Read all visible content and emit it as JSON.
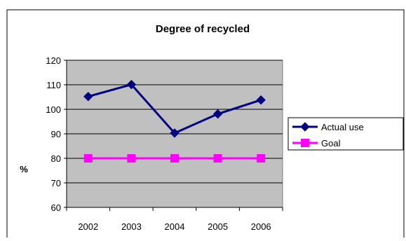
{
  "chart_data": {
    "type": "line",
    "title": "Degree of recycled",
    "xlabel": "",
    "ylabel": "%",
    "categories": [
      "2002",
      "2003",
      "2004",
      "2005",
      "2006"
    ],
    "ylim": [
      60,
      120
    ],
    "yticks": [
      60,
      70,
      80,
      90,
      100,
      110,
      120
    ],
    "grid": "horizontal",
    "plot_background": "#c0c0c0",
    "legend_position": "right",
    "series": [
      {
        "name": "Actual use",
        "values": [
          105.2,
          110.1,
          90.3,
          98.1,
          103.8
        ],
        "color": "#000080",
        "marker": "diamond"
      },
      {
        "name": "Goal",
        "values": [
          80,
          80,
          80,
          80,
          80
        ],
        "color": "#ff00ff",
        "marker": "square"
      }
    ]
  }
}
